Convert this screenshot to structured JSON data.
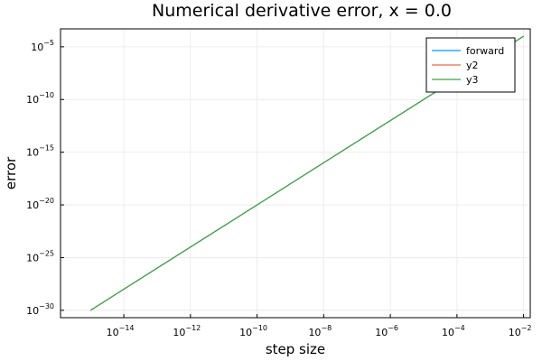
{
  "chart_data": {
    "type": "line",
    "title": "Numerical derivative error, x = 0.0",
    "xlabel": "step size",
    "ylabel": "error",
    "xscale": "log",
    "yscale": "log",
    "xlim_exp": [
      -15.9,
      -1.8
    ],
    "ylim_exp": [
      -30.7,
      -3.3
    ],
    "xticks": [
      {
        "base": "10",
        "exp": "−14",
        "value_exp": -14
      },
      {
        "base": "10",
        "exp": "−12",
        "value_exp": -12
      },
      {
        "base": "10",
        "exp": "−10",
        "value_exp": -10
      },
      {
        "base": "10",
        "exp": "−8",
        "value_exp": -8
      },
      {
        "base": "10",
        "exp": "−6",
        "value_exp": -6
      },
      {
        "base": "10",
        "exp": "−4",
        "value_exp": -4
      },
      {
        "base": "10",
        "exp": "−2",
        "value_exp": -2
      }
    ],
    "yticks": [
      {
        "base": "10",
        "exp": "−5",
        "value_exp": -5
      },
      {
        "base": "10",
        "exp": "−10",
        "value_exp": -10
      },
      {
        "base": "10",
        "exp": "−15",
        "value_exp": -15
      },
      {
        "base": "10",
        "exp": "−20",
        "value_exp": -20
      },
      {
        "base": "10",
        "exp": "−25",
        "value_exp": -25
      },
      {
        "base": "10",
        "exp": "−30",
        "value_exp": -30
      }
    ],
    "legend_position": "top-right",
    "series": [
      {
        "name": "forward",
        "color": "#009AFA",
        "x_exp": [
          -15,
          -2
        ],
        "y_exp": [
          -30,
          -4
        ]
      },
      {
        "name": "y2",
        "color": "#E26F46",
        "x_exp": [
          -15,
          -2
        ],
        "y_exp": [
          -30,
          -4
        ]
      },
      {
        "name": "y3",
        "color": "#3EA44E",
        "x_exp": [
          -15,
          -2
        ],
        "y_exp": [
          -30,
          -4
        ]
      }
    ]
  }
}
